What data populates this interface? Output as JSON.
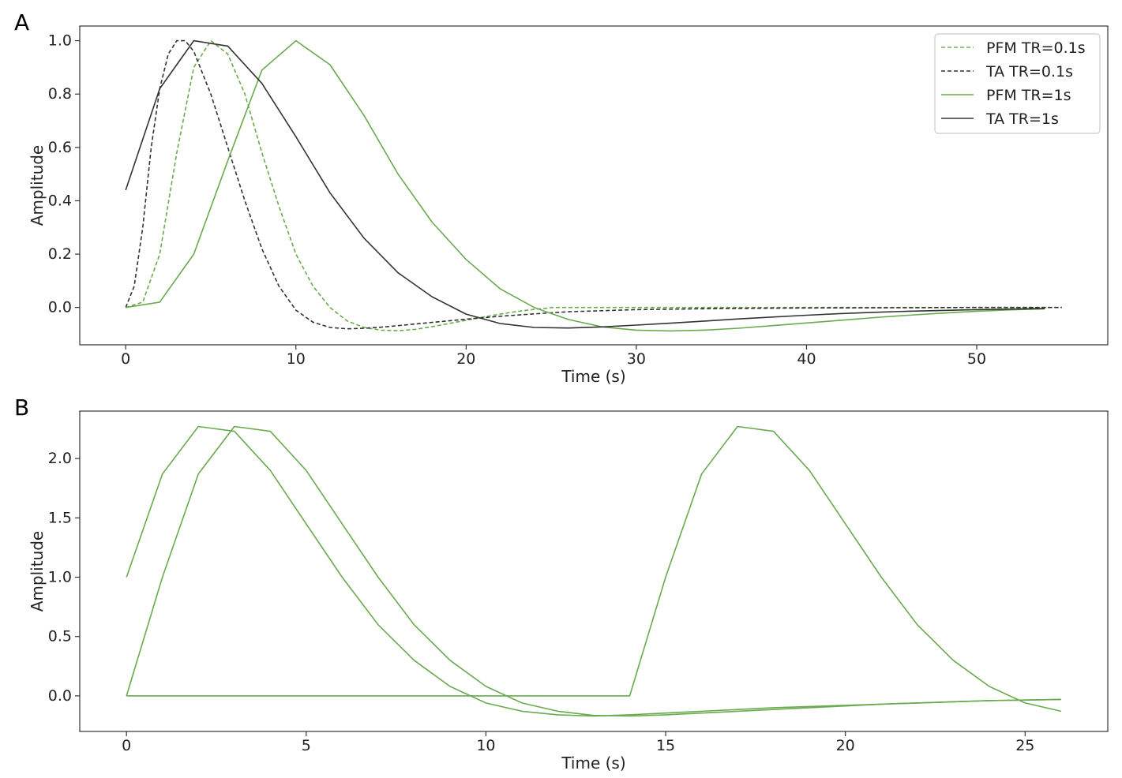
{
  "chart_data": [
    {
      "panel": "A",
      "type": "line",
      "xlabel": "Time (s)",
      "ylabel": "Amplitude",
      "xlim": [
        -2.7,
        57.7
      ],
      "ylim": [
        -0.14,
        1.055
      ],
      "xticks": [
        0,
        10,
        20,
        30,
        40,
        50
      ],
      "yticks": [
        0.0,
        0.2,
        0.4,
        0.6,
        0.8,
        1.0
      ],
      "ytick_labels": [
        "0.0",
        "0.2",
        "0.4",
        "0.6",
        "0.8",
        "1.0"
      ],
      "grid": false,
      "legend_position": "top-right",
      "series": [
        {
          "name": "PFM TR=0.1s",
          "color": "#6aaa4e",
          "style": "dashed",
          "x": [
            0,
            1,
            2,
            3,
            4,
            5,
            6,
            7,
            8,
            9,
            10,
            11,
            12,
            13,
            14,
            15,
            16,
            17,
            18,
            19,
            20,
            21,
            22,
            23,
            24,
            24.9,
            25,
            30,
            40,
            50,
            55
          ],
          "y": [
            0.0,
            0.02,
            0.2,
            0.58,
            0.9,
            1.0,
            0.95,
            0.8,
            0.58,
            0.38,
            0.2,
            0.08,
            0.0,
            -0.05,
            -0.075,
            -0.085,
            -0.087,
            -0.082,
            -0.072,
            -0.06,
            -0.048,
            -0.036,
            -0.025,
            -0.015,
            -0.007,
            -0.002,
            0.0,
            0.0,
            0.0,
            0.0,
            0.0
          ]
        },
        {
          "name": "TA TR=0.1s",
          "color": "#333333",
          "style": "dashed",
          "x": [
            0,
            0.5,
            1,
            1.5,
            2,
            2.5,
            3,
            3.5,
            4,
            5,
            6,
            7,
            8,
            9,
            10,
            11,
            12,
            13,
            14,
            15,
            16,
            18,
            20,
            22,
            24,
            26,
            30,
            35,
            40,
            45,
            50,
            55
          ],
          "y": [
            0.0,
            0.08,
            0.3,
            0.6,
            0.82,
            0.95,
            1.0,
            1.0,
            0.96,
            0.8,
            0.6,
            0.4,
            0.22,
            0.08,
            -0.01,
            -0.055,
            -0.075,
            -0.08,
            -0.078,
            -0.074,
            -0.068,
            -0.056,
            -0.044,
            -0.033,
            -0.024,
            -0.016,
            -0.008,
            -0.004,
            -0.002,
            -0.001,
            0.0,
            0.0
          ]
        },
        {
          "name": "PFM TR=1s",
          "color": "#6aaa4e",
          "style": "solid",
          "x": [
            0,
            2,
            4,
            6,
            8,
            10,
            12,
            14,
            16,
            18,
            20,
            22,
            24,
            26,
            28,
            30,
            32,
            34,
            36,
            38,
            40,
            42,
            44,
            46,
            48,
            50,
            52,
            54
          ],
          "y": [
            0.0,
            0.02,
            0.2,
            0.55,
            0.89,
            1.0,
            0.91,
            0.72,
            0.5,
            0.32,
            0.18,
            0.07,
            0.0,
            -0.045,
            -0.073,
            -0.085,
            -0.088,
            -0.085,
            -0.078,
            -0.068,
            -0.058,
            -0.048,
            -0.038,
            -0.029,
            -0.021,
            -0.014,
            -0.009,
            -0.005
          ]
        },
        {
          "name": "TA TR=1s",
          "color": "#333333",
          "style": "solid",
          "x": [
            0,
            2,
            4,
            6,
            8,
            10,
            12,
            14,
            16,
            18,
            20,
            22,
            24,
            26,
            28,
            30,
            32,
            34,
            36,
            38,
            40,
            42,
            44,
            46,
            48,
            50,
            52,
            54
          ],
          "y": [
            0.44,
            0.82,
            1.0,
            0.98,
            0.84,
            0.64,
            0.43,
            0.26,
            0.13,
            0.04,
            -0.025,
            -0.06,
            -0.075,
            -0.077,
            -0.073,
            -0.066,
            -0.059,
            -0.051,
            -0.043,
            -0.036,
            -0.029,
            -0.023,
            -0.018,
            -0.014,
            -0.011,
            -0.008,
            -0.006,
            -0.004
          ]
        }
      ]
    },
    {
      "panel": "B",
      "type": "line",
      "xlabel": "Time (s)",
      "ylabel": "Amplitude",
      "xlim": [
        -1.3,
        27.3
      ],
      "ylim": [
        -0.3,
        2.4
      ],
      "xticks": [
        0,
        5,
        10,
        15,
        20,
        25
      ],
      "yticks": [
        0.0,
        0.5,
        1.0,
        1.5,
        2.0
      ],
      "ytick_labels": [
        "0.0",
        "0.5",
        "1.0",
        "1.5",
        "2.0"
      ],
      "grid": false,
      "series": [
        {
          "color": "#6aaa4e",
          "style": "solid",
          "x": [
            0,
            1,
            2,
            3,
            4,
            5,
            6,
            7,
            8,
            9,
            10,
            11,
            12,
            13,
            14,
            15,
            16,
            17,
            18,
            19,
            20,
            21,
            22,
            23,
            24,
            25,
            26
          ],
          "y": [
            1.0,
            1.87,
            2.27,
            2.23,
            1.9,
            1.45,
            1.0,
            0.6,
            0.3,
            0.08,
            -0.06,
            -0.13,
            -0.16,
            -0.17,
            -0.16,
            -0.145,
            -0.13,
            -0.115,
            -0.1,
            -0.09,
            -0.08,
            -0.07,
            -0.06,
            -0.05,
            -0.04,
            -0.035,
            -0.03
          ]
        },
        {
          "color": "#6aaa4e",
          "style": "solid",
          "x": [
            0,
            1,
            2,
            3,
            4,
            5,
            6,
            7,
            8,
            9,
            10,
            11,
            12,
            13,
            14,
            15,
            16,
            17,
            18,
            19,
            20,
            21,
            22,
            23,
            24,
            25,
            26
          ],
          "y": [
            0.0,
            1.0,
            1.87,
            2.27,
            2.23,
            1.9,
            1.45,
            1.0,
            0.6,
            0.3,
            0.08,
            -0.06,
            -0.13,
            -0.165,
            -0.17,
            -0.16,
            -0.145,
            -0.13,
            -0.115,
            -0.1,
            -0.085,
            -0.07,
            -0.06,
            -0.05,
            -0.04,
            -0.035,
            -0.03
          ]
        },
        {
          "color": "#6aaa4e",
          "style": "solid",
          "x": [
            0,
            14,
            15,
            16,
            17,
            18,
            19,
            20,
            21,
            22,
            23,
            24,
            25,
            26
          ],
          "y": [
            0.0,
            0.0,
            1.0,
            1.87,
            2.27,
            2.23,
            1.9,
            1.45,
            1.0,
            0.6,
            0.3,
            0.08,
            -0.06,
            -0.13
          ]
        }
      ]
    }
  ]
}
